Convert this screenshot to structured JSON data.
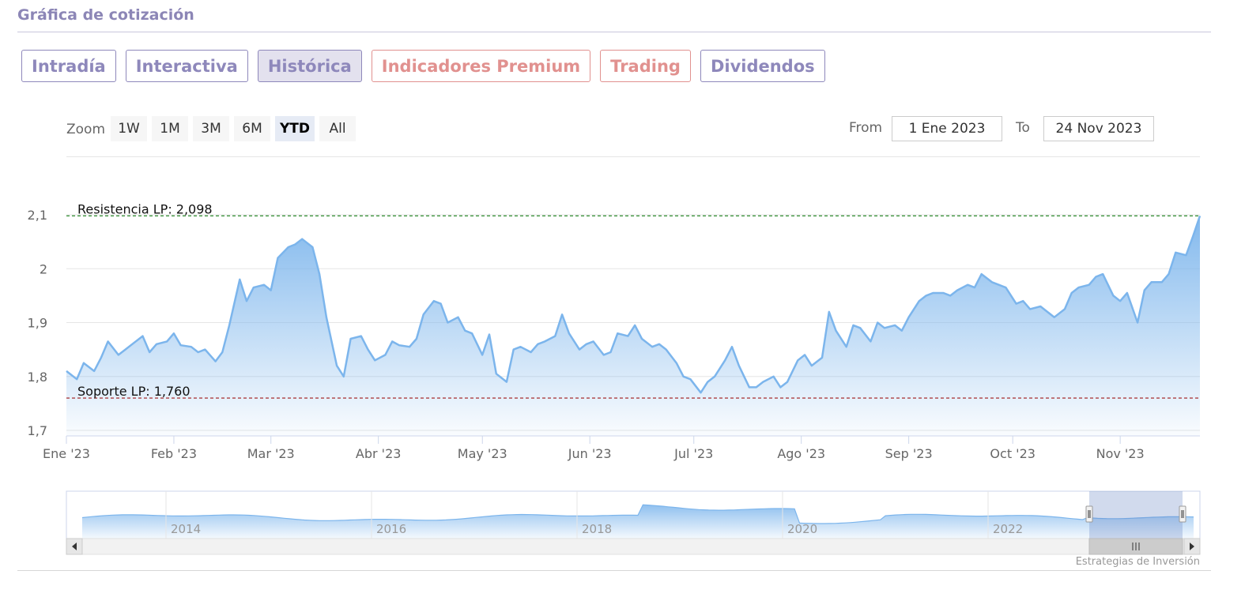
{
  "section": {
    "title": "Gráfica de cotización"
  },
  "tabs": [
    {
      "label": "Intradía",
      "state": "default"
    },
    {
      "label": "Interactiva",
      "state": "default"
    },
    {
      "label": "Histórica",
      "state": "active"
    },
    {
      "label": "Indicadores Premium",
      "state": "premium"
    },
    {
      "label": "Trading",
      "state": "premium"
    },
    {
      "label": "Dividendos",
      "state": "default"
    }
  ],
  "zoom": {
    "label": "Zoom",
    "buttons": [
      {
        "label": "1W",
        "active": false
      },
      {
        "label": "1M",
        "active": false
      },
      {
        "label": "3M",
        "active": false
      },
      {
        "label": "6M",
        "active": false
      },
      {
        "label": "YTD",
        "active": true
      },
      {
        "label": "All",
        "active": false
      }
    ]
  },
  "range": {
    "from_label": "From",
    "from_value": "1 Ene 2023",
    "to_label": "To",
    "to_value": "24 Nov 2023"
  },
  "credits": "Estrategias de Inversión",
  "colors": {
    "accent": "#8e88bb",
    "premium": "#e1918f",
    "series": "#7cb5ec",
    "resistance": "#2e8b2e",
    "support": "#a01818"
  },
  "chart_data": {
    "type": "area",
    "title": "",
    "xlabel": "",
    "ylabel": "",
    "ylim": [
      1.7,
      2.1
    ],
    "yticks": [
      "2,1",
      "2",
      "1,9",
      "1,8",
      "1,7"
    ],
    "ytick_values": [
      2.1,
      2.0,
      1.9,
      1.8,
      1.7
    ],
    "xticks": [
      "Ene '23",
      "Feb '23",
      "Mar '23",
      "Abr '23",
      "May '23",
      "Jun '23",
      "Jul '23",
      "Ago '23",
      "Sep '23",
      "Oct '23",
      "Nov '23"
    ],
    "xtick_dates": [
      "2023-01-01",
      "2023-02-01",
      "2023-03-01",
      "2023-04-01",
      "2023-05-01",
      "2023-06-01",
      "2023-07-01",
      "2023-08-01",
      "2023-09-01",
      "2023-10-01",
      "2023-11-01"
    ],
    "xlim": [
      "2023-01-01",
      "2023-11-24"
    ],
    "grid": true,
    "lines": [
      {
        "label": "Resistencia LP: 2,098",
        "value": 2.098,
        "style": "dashed",
        "color": "#2e8b2e"
      },
      {
        "label": "Soporte LP: 1,760",
        "value": 1.76,
        "style": "dashed",
        "color": "#a01818"
      }
    ],
    "series": [
      {
        "x": [
          "2023-01-01",
          "2023-01-04",
          "2023-01-06",
          "2023-01-09",
          "2023-01-11",
          "2023-01-13",
          "2023-01-16",
          "2023-01-18",
          "2023-01-20",
          "2023-01-23",
          "2023-01-25",
          "2023-01-27",
          "2023-01-30",
          "2023-02-01",
          "2023-02-03",
          "2023-02-06",
          "2023-02-08",
          "2023-02-10",
          "2023-02-13",
          "2023-02-15",
          "2023-02-17",
          "2023-02-20",
          "2023-02-22",
          "2023-02-24",
          "2023-02-27",
          "2023-03-01",
          "2023-03-03",
          "2023-03-06",
          "2023-03-08",
          "2023-03-10",
          "2023-03-13",
          "2023-03-15",
          "2023-03-17",
          "2023-03-20",
          "2023-03-22",
          "2023-03-24",
          "2023-03-27",
          "2023-03-29",
          "2023-03-31",
          "2023-04-03",
          "2023-04-05",
          "2023-04-07",
          "2023-04-10",
          "2023-04-12",
          "2023-04-14",
          "2023-04-17",
          "2023-04-19",
          "2023-04-21",
          "2023-04-24",
          "2023-04-26",
          "2023-04-28",
          "2023-05-01",
          "2023-05-03",
          "2023-05-05",
          "2023-05-08",
          "2023-05-10",
          "2023-05-12",
          "2023-05-15",
          "2023-05-17",
          "2023-05-19",
          "2023-05-22",
          "2023-05-24",
          "2023-05-26",
          "2023-05-29",
          "2023-05-31",
          "2023-06-02",
          "2023-06-05",
          "2023-06-07",
          "2023-06-09",
          "2023-06-12",
          "2023-06-14",
          "2023-06-16",
          "2023-06-19",
          "2023-06-21",
          "2023-06-23",
          "2023-06-26",
          "2023-06-28",
          "2023-06-30",
          "2023-07-03",
          "2023-07-05",
          "2023-07-07",
          "2023-07-10",
          "2023-07-12",
          "2023-07-14",
          "2023-07-17",
          "2023-07-19",
          "2023-07-21",
          "2023-07-24",
          "2023-07-26",
          "2023-07-28",
          "2023-07-31",
          "2023-08-02",
          "2023-08-04",
          "2023-08-07",
          "2023-08-09",
          "2023-08-11",
          "2023-08-14",
          "2023-08-16",
          "2023-08-18",
          "2023-08-21",
          "2023-08-23",
          "2023-08-25",
          "2023-08-28",
          "2023-08-30",
          "2023-09-01",
          "2023-09-04",
          "2023-09-06",
          "2023-09-08",
          "2023-09-11",
          "2023-09-13",
          "2023-09-15",
          "2023-09-18",
          "2023-09-20",
          "2023-09-22",
          "2023-09-25",
          "2023-09-27",
          "2023-09-29",
          "2023-10-02",
          "2023-10-04",
          "2023-10-06",
          "2023-10-09",
          "2023-10-11",
          "2023-10-13",
          "2023-10-16",
          "2023-10-18",
          "2023-10-20",
          "2023-10-23",
          "2023-10-25",
          "2023-10-27",
          "2023-10-30",
          "2023-11-01",
          "2023-11-03",
          "2023-11-06",
          "2023-11-08",
          "2023-11-10",
          "2023-11-13",
          "2023-11-15",
          "2023-11-17",
          "2023-11-20",
          "2023-11-22",
          "2023-11-24"
        ],
        "values": [
          1.81,
          1.795,
          1.825,
          1.81,
          1.835,
          1.865,
          1.84,
          1.85,
          1.86,
          1.875,
          1.845,
          1.86,
          1.865,
          1.88,
          1.858,
          1.855,
          1.845,
          1.85,
          1.828,
          1.845,
          1.895,
          1.98,
          1.94,
          1.965,
          1.97,
          1.96,
          2.02,
          2.04,
          2.045,
          2.055,
          2.04,
          1.99,
          1.91,
          1.82,
          1.8,
          1.87,
          1.875,
          1.85,
          1.83,
          1.84,
          1.865,
          1.858,
          1.855,
          1.87,
          1.915,
          1.94,
          1.935,
          1.9,
          1.91,
          1.885,
          1.88,
          1.84,
          1.878,
          1.805,
          1.79,
          1.85,
          1.855,
          1.845,
          1.86,
          1.865,
          1.875,
          1.915,
          1.88,
          1.85,
          1.86,
          1.865,
          1.84,
          1.845,
          1.88,
          1.875,
          1.895,
          1.87,
          1.855,
          1.86,
          1.85,
          1.825,
          1.8,
          1.795,
          1.77,
          1.79,
          1.8,
          1.83,
          1.855,
          1.82,
          1.78,
          1.78,
          1.79,
          1.8,
          1.78,
          1.79,
          1.83,
          1.84,
          1.82,
          1.835,
          1.92,
          1.885,
          1.855,
          1.895,
          1.89,
          1.865,
          1.9,
          1.89,
          1.895,
          1.885,
          1.91,
          1.94,
          1.95,
          1.955,
          1.955,
          1.95,
          1.96,
          1.97,
          1.965,
          1.99,
          1.975,
          1.97,
          1.965,
          1.935,
          1.94,
          1.925,
          1.93,
          1.92,
          1.91,
          1.925,
          1.955,
          1.965,
          1.97,
          1.985,
          1.99,
          1.95,
          1.94,
          1.955,
          1.9,
          1.96,
          1.975,
          1.975,
          1.99,
          2.03,
          2.025,
          2.06,
          2.098
        ]
      }
    ],
    "navigator": {
      "xticks": [
        "2014",
        "2016",
        "2018",
        "2020",
        "2022"
      ]
    }
  }
}
